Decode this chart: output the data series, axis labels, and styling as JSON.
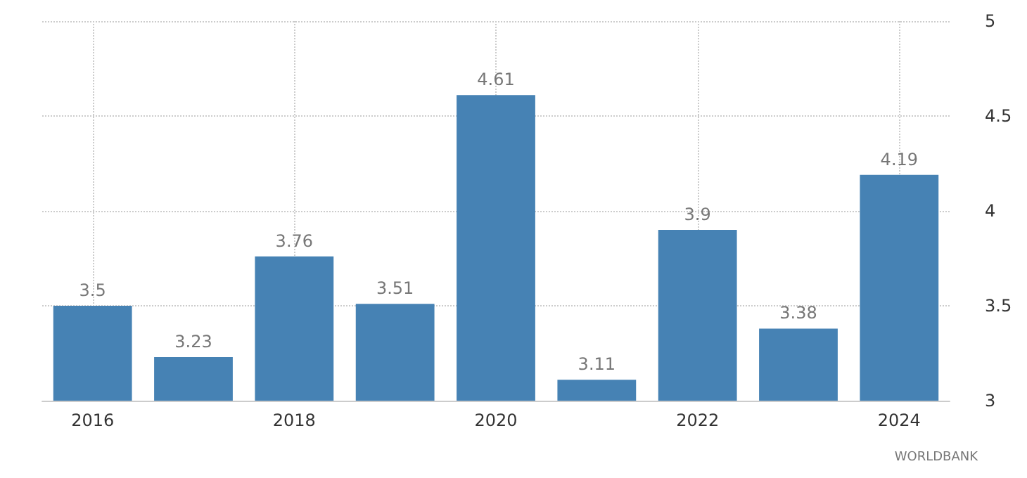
{
  "chart_data": {
    "type": "bar",
    "categories": [
      "2016",
      null,
      "2018",
      null,
      "2020",
      null,
      "2022",
      null,
      "2024"
    ],
    "values": [
      3.5,
      3.23,
      3.76,
      3.51,
      4.61,
      3.11,
      3.9,
      3.38,
      4.19
    ],
    "color": "#4682b4",
    "ylim": [
      3,
      5
    ],
    "yticks": [
      3,
      3.5,
      4,
      4.5,
      5
    ],
    "grid": true,
    "data_labels": true,
    "annotations": [
      "WORLDBANK"
    ]
  }
}
